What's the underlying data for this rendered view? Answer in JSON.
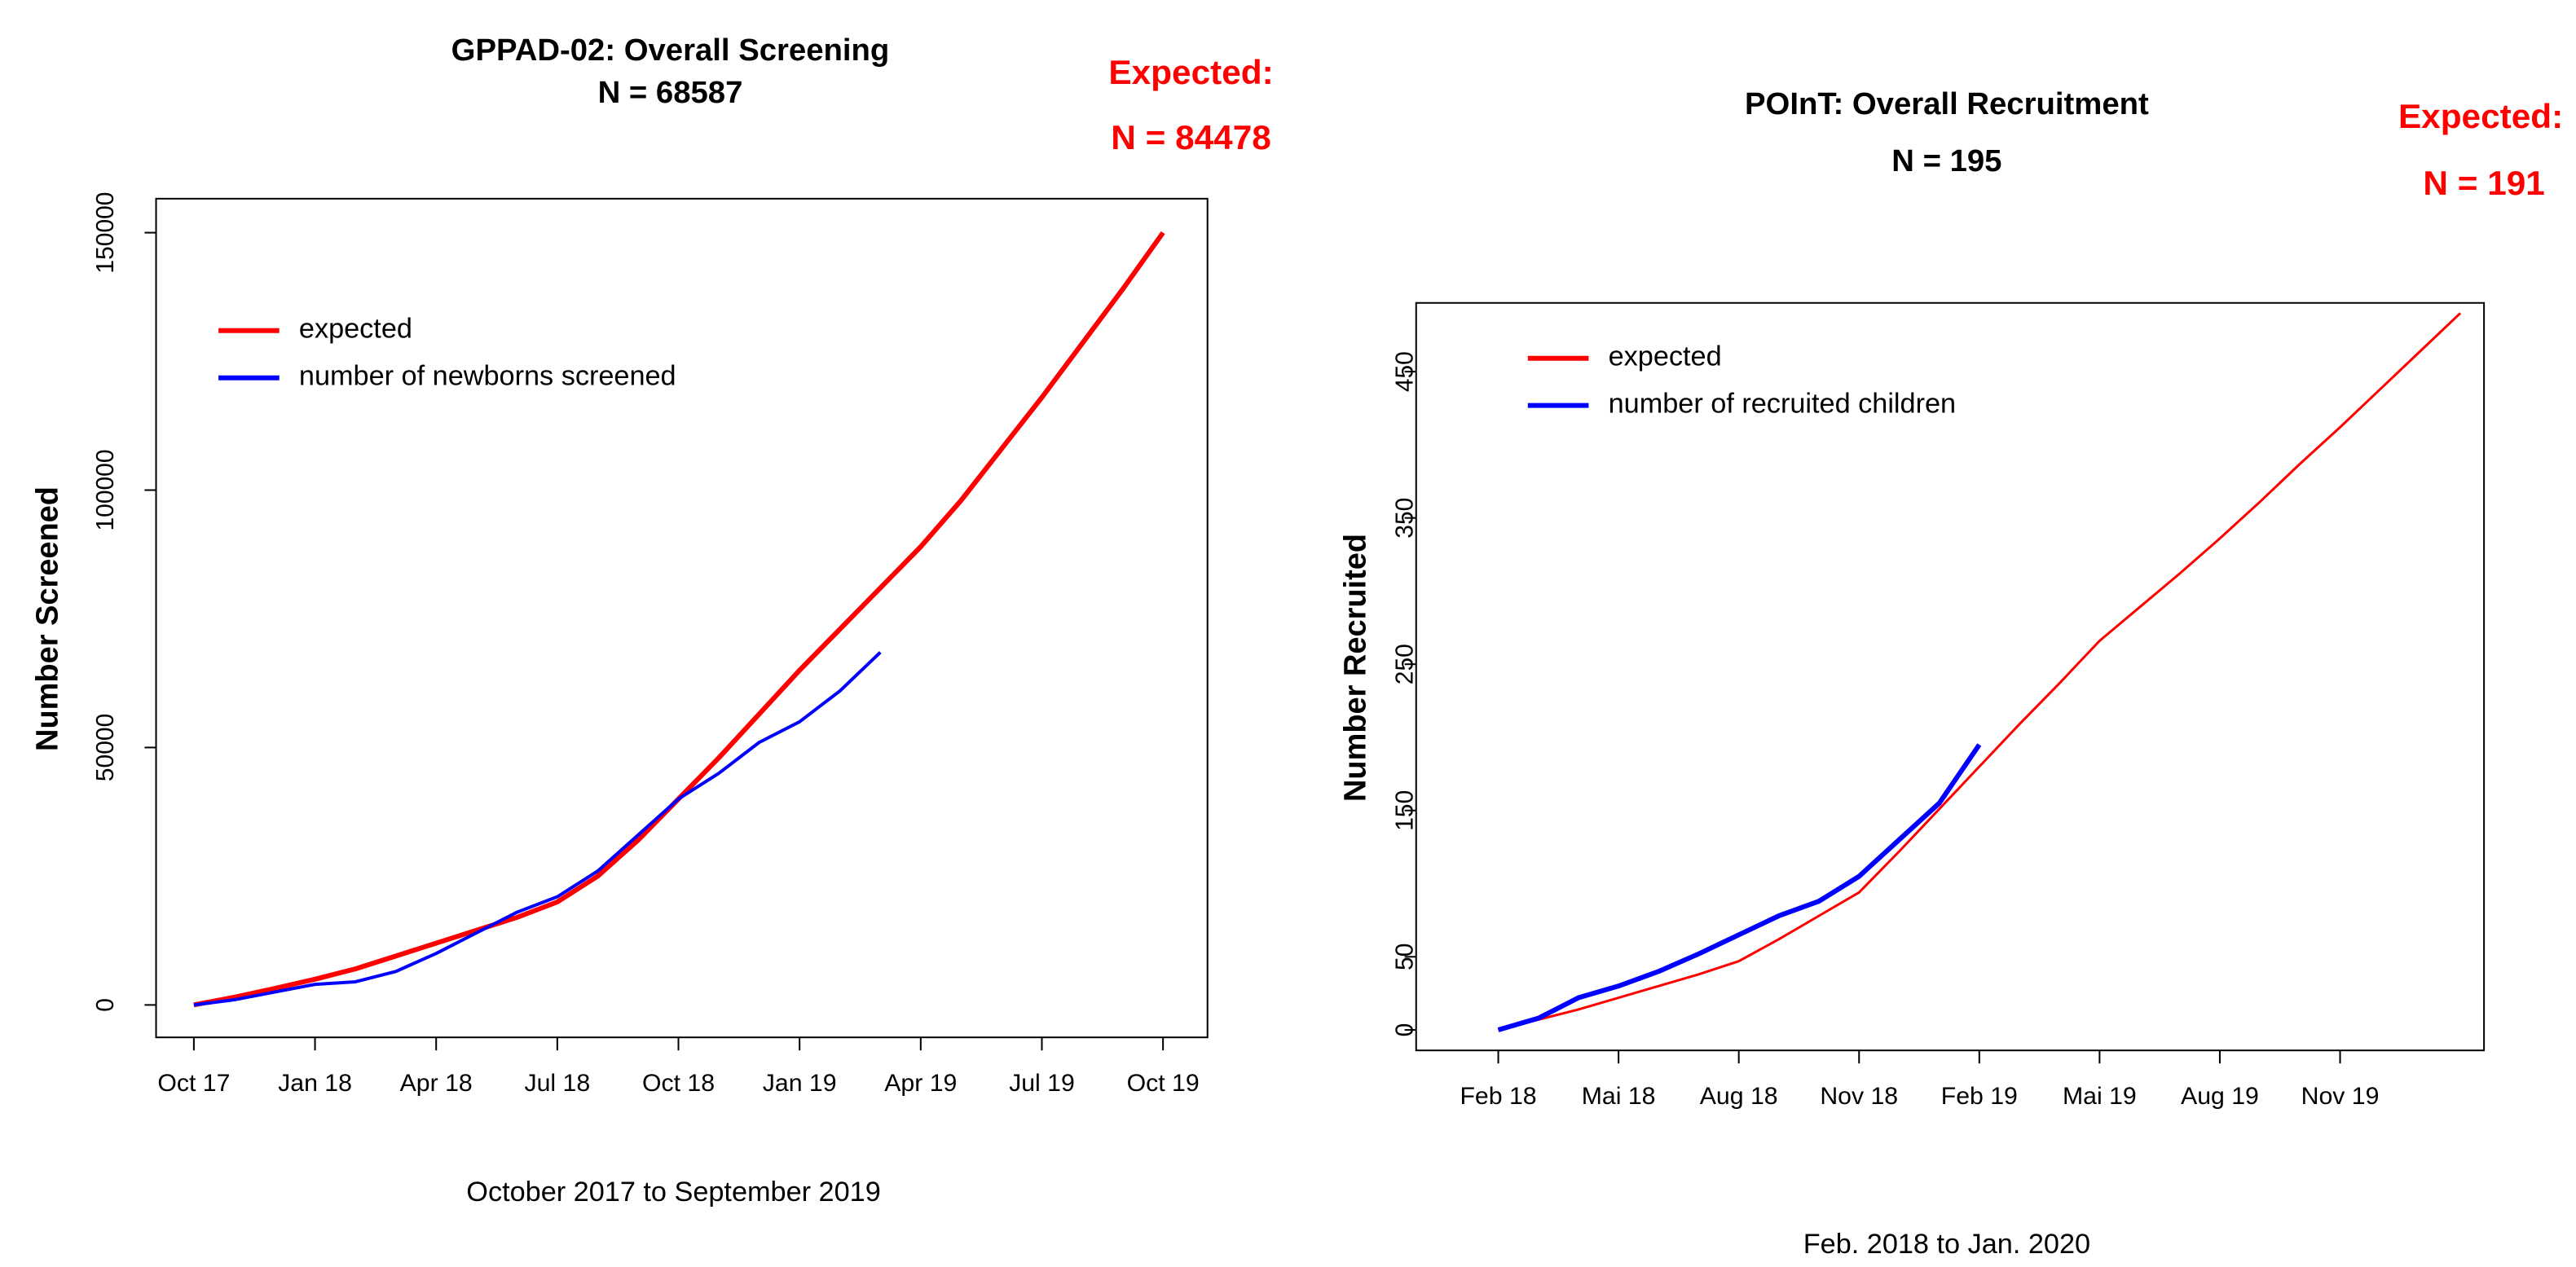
{
  "chart_data": [
    {
      "type": "line",
      "title": "GPPAD-02: Overall Screening",
      "subtitle": "N =  68587",
      "annotation": [
        "Expected:",
        "N = 84478"
      ],
      "xlabel": "October 2017 to September 2019",
      "ylabel": "Number Screened",
      "x": [
        "Oct 17",
        "Nov 17",
        "Dec 17",
        "Jan 18",
        "Feb 18",
        "Mar 18",
        "Apr 18",
        "May 18",
        "Jun 18",
        "Jul 18",
        "Aug 18",
        "Sep 18",
        "Oct 18",
        "Nov 18",
        "Dec 18",
        "Jan 19",
        "Feb 19",
        "Mar 19",
        "Apr 19",
        "May 19",
        "Jun 19",
        "Jul 19",
        "Aug 19",
        "Sep 19",
        "Oct 19"
      ],
      "xticks": [
        "Oct 17",
        "Jan 18",
        "Apr 18",
        "Jul 18",
        "Oct 18",
        "Jan 19",
        "Apr 19",
        "Jul 19",
        "Oct 19"
      ],
      "ylim": [
        -6300,
        156600
      ],
      "yticks": [
        0,
        50000,
        100000,
        150000
      ],
      "series": [
        {
          "name": "expected",
          "color": "#ff0000",
          "width": 3,
          "values": [
            0,
            1500,
            3200,
            5000,
            7000,
            9500,
            12000,
            14500,
            17000,
            20000,
            25000,
            32000,
            40000,
            48000,
            56500,
            65000,
            73000,
            81000,
            89000,
            98000,
            108000,
            118000,
            128500,
            139000,
            150000
          ]
        },
        {
          "name": "number of newborns screened",
          "color": "#0000ff",
          "width": 2,
          "values": [
            0,
            1000,
            2500,
            4000,
            4500,
            6500,
            10000,
            14000,
            18000,
            21000,
            26000,
            33000,
            40000,
            45000,
            51000,
            55000,
            61000,
            68500,
            null,
            null,
            null,
            null,
            null,
            null,
            null
          ]
        }
      ]
    },
    {
      "type": "line",
      "title": "POInT: Overall Recruitment",
      "subtitle": "N =  195",
      "annotation": [
        "Expected:",
        "N = 191"
      ],
      "xlabel": "Feb. 2018 to Jan. 2020",
      "ylabel": "Number Recruited",
      "x": [
        "Feb 18",
        "Mar 18",
        "Apr 18",
        "Mai 18",
        "Jun 18",
        "Jul 18",
        "Aug 18",
        "Sep 18",
        "Oct 18",
        "Nov 18",
        "Dec 18",
        "Jan 19",
        "Feb 19",
        "Mar 19",
        "Apr 19",
        "Mai 19",
        "Jun 19",
        "Jul 19",
        "Aug 19",
        "Sep 19",
        "Oct 19",
        "Nov 19",
        "Dec 19",
        "Jan 20",
        "Feb 20"
      ],
      "xticks": [
        "Feb 18",
        "Mai 18",
        "Aug 18",
        "Nov 18",
        "Feb 19",
        "Mai 19",
        "Aug 19",
        "Nov 19"
      ],
      "ylim": [
        -14,
        497
      ],
      "yticks": [
        0,
        50,
        150,
        250,
        350,
        450
      ],
      "series": [
        {
          "name": "expected",
          "color": "#ff0000",
          "width": 1.5,
          "values": [
            0,
            7,
            14,
            22,
            30,
            38,
            47,
            62,
            78,
            94,
            122,
            151,
            180,
            209,
            237,
            266,
            289,
            312,
            336,
            361,
            387,
            412,
            438,
            464,
            490
          ]
        },
        {
          "name": "number of recruited children",
          "color": "#0000ff",
          "width": 3,
          "values": [
            0,
            8,
            22,
            30,
            40,
            52,
            65,
            78,
            88,
            105,
            130,
            155,
            195,
            null,
            null,
            null,
            null,
            null,
            null,
            null,
            null,
            null,
            null,
            null,
            null
          ]
        }
      ]
    }
  ]
}
